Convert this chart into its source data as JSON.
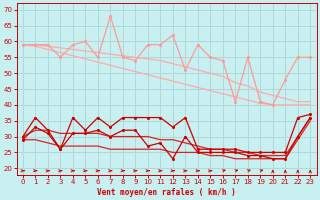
{
  "background_color": "#c8f0f0",
  "grid_color": "#b0d8d8",
  "xlabel": "Vent moyen/en rafales ( km/h )",
  "ylabel_ticks": [
    20,
    25,
    30,
    35,
    40,
    45,
    50,
    55,
    60,
    65,
    70
  ],
  "x_ticks": [
    0,
    1,
    2,
    3,
    4,
    5,
    6,
    7,
    8,
    9,
    10,
    11,
    12,
    13,
    14,
    15,
    16,
    17,
    18,
    19,
    20,
    21,
    22,
    23
  ],
  "pink_zigzag": [
    59,
    59,
    59,
    55,
    59,
    60,
    55,
    68,
    55,
    54,
    59,
    59,
    62,
    51,
    59,
    55,
    54,
    41,
    55,
    41,
    40,
    48,
    55,
    55
  ],
  "pink_trend1": [
    59,
    59,
    58.5,
    58,
    57.5,
    57,
    56.5,
    56,
    55.5,
    55,
    54.5,
    54,
    53,
    52,
    51,
    50,
    49,
    47,
    46,
    44,
    43,
    42,
    41,
    41
  ],
  "pink_trend2": [
    59,
    58.5,
    57.5,
    56.5,
    55.5,
    54.5,
    53.5,
    52.5,
    51.5,
    50.5,
    49.5,
    48.5,
    47.5,
    46.5,
    45.5,
    44.5,
    43.5,
    42.5,
    41.5,
    40.5,
    40,
    40,
    40,
    40
  ],
  "red_zigzag": [
    30,
    36,
    32,
    26,
    36,
    32,
    36,
    33,
    36,
    36,
    36,
    36,
    33,
    36,
    26,
    26,
    26,
    26,
    25,
    25,
    25,
    25,
    36,
    37
  ],
  "red_trend1": [
    30,
    32,
    32,
    31,
    31,
    31,
    31,
    30,
    30,
    30,
    30,
    29,
    29,
    28,
    27,
    26,
    26,
    25,
    25,
    24,
    24,
    24,
    30,
    36
  ],
  "red_trend2": [
    29,
    29,
    28,
    27,
    27,
    27,
    27,
    26,
    26,
    26,
    26,
    26,
    25,
    25,
    25,
    24,
    24,
    23,
    23,
    23,
    23,
    23,
    29,
    35
  ],
  "red_lower_zigzag": [
    29,
    33,
    31,
    26,
    31,
    31,
    32,
    30,
    32,
    32,
    27,
    28,
    23,
    30,
    25,
    25,
    25,
    25,
    24,
    24,
    23,
    23,
    30,
    36
  ],
  "pink_color": "#ff9999",
  "pink_trend_color": "#ffaaaa",
  "red_color": "#cc0000",
  "red_trend_color": "#dd2222",
  "arrow_color": "#cc0000",
  "arrow_angles_deg": [
    90,
    90,
    90,
    90,
    90,
    90,
    90,
    90,
    90,
    90,
    90,
    90,
    90,
    90,
    90,
    90,
    45,
    45,
    45,
    45,
    0,
    0,
    0,
    0
  ],
  "ylim": [
    18,
    72
  ],
  "xlim": [
    -0.5,
    23.5
  ]
}
